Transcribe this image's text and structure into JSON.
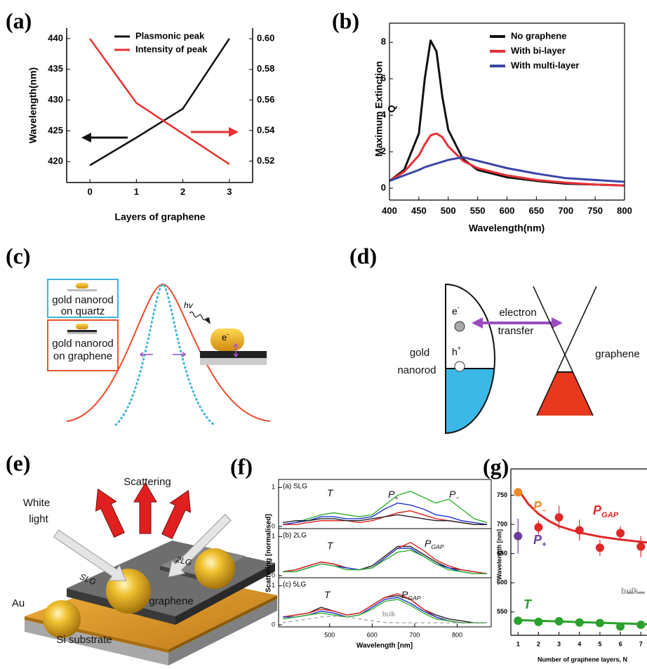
{
  "chart_data": [
    {
      "type": "line",
      "label": "(a)",
      "x": [
        0,
        1,
        2,
        3
      ],
      "xlim": [
        -0.5,
        3.5
      ],
      "xticks": [
        0,
        1,
        2,
        3
      ],
      "ylim": [
        416.6,
        441.7
      ],
      "yticks": [
        420,
        425,
        430,
        435,
        440
      ],
      "y2lim": [
        0.506,
        0.607
      ],
      "y2ticks": [
        0.52,
        0.54,
        0.56,
        0.58,
        {
          "value": 0.6,
          "label": "0.60"
        }
      ],
      "xlabel": "Layers of graphene",
      "ylabel": "Wavelength(nm)",
      "series": [
        {
          "name": "Plasmonic peak",
          "color": "#111111",
          "values": [
            419.4,
            423.9,
            428.6,
            440
          ]
        },
        {
          "name": "Intensity of peak",
          "color": "#e8312f",
          "axis": "y2",
          "values": [
            0.6,
            0.558,
            0.538,
            0.518
          ]
        }
      ]
    },
    {
      "type": "line",
      "label": "(b)",
      "x": [
        400,
        425,
        450,
        460,
        470,
        480,
        490,
        500,
        525,
        550,
        600,
        650,
        700,
        750,
        800
      ],
      "xlim": [
        400,
        800
      ],
      "xticks": [
        400,
        450,
        500,
        550,
        600,
        650,
        700,
        750,
        800
      ],
      "ylim": [
        -0.65,
        9.05
      ],
      "yticks": [
        0,
        2,
        4,
        6,
        8
      ],
      "xlabel": "Wavelength(nm)",
      "ylabel": [
        "Maximum Extinction",
        "Q"
      ],
      "series": [
        {
          "name": "No graphene",
          "color": "#111111",
          "values": [
            0.4,
            1.0,
            3.0,
            6.0,
            8.1,
            7.5,
            5.0,
            3.2,
            1.6,
            1.0,
            0.6,
            0.4,
            0.25,
            0.2,
            0.15
          ]
        },
        {
          "name": "With bi-layer",
          "color": "#e8313a",
          "values": [
            0.4,
            0.9,
            1.8,
            2.4,
            2.9,
            3.0,
            2.8,
            2.3,
            1.5,
            1.1,
            0.7,
            0.45,
            0.3,
            0.2,
            0.15
          ]
        },
        {
          "name": "With multi-layer",
          "color": "#3a45a8",
          "values": [
            0.4,
            0.7,
            1.0,
            1.15,
            1.25,
            1.35,
            1.45,
            1.55,
            1.7,
            1.5,
            1.1,
            0.8,
            0.55,
            0.45,
            0.35
          ]
        }
      ]
    },
    {
      "type": "line",
      "label": "(f)",
      "x": [
        390,
        420,
        450,
        480,
        510,
        540,
        570,
        600,
        630,
        660,
        690,
        720,
        750,
        780,
        810,
        840,
        870
      ],
      "xlim": [
        380,
        880
      ],
      "xticks": [
        500,
        600,
        700,
        800
      ],
      "ylim": [
        0,
        1.15
      ],
      "yticks": [
        0,
        1
      ],
      "xlabel": "Wavelength [nm]",
      "ylabel": "Scattering [normalised]",
      "panels": [
        {
          "title": "(a) SLG",
          "series": [
            {
              "color": "#30b030",
              "values": [
                0.05,
                0.1,
                0.2,
                0.3,
                0.35,
                0.3,
                0.25,
                0.3,
                0.55,
                0.8,
                0.9,
                0.75,
                0.6,
                0.7,
                0.45,
                0.2,
                0.1
              ]
            },
            {
              "color": "#2030d0",
              "values": [
                0.05,
                0.1,
                0.15,
                0.25,
                0.25,
                0.2,
                0.2,
                0.25,
                0.45,
                0.6,
                0.55,
                0.45,
                0.3,
                0.25,
                0.15,
                0.1,
                0.05
              ]
            },
            {
              "color": "#e02020",
              "values": [
                0.05,
                0.05,
                0.1,
                0.15,
                0.15,
                0.15,
                0.1,
                0.15,
                0.25,
                0.35,
                0.4,
                0.3,
                0.2,
                0.15,
                0.1,
                0.05,
                0.05
              ]
            },
            {
              "color": "#222222",
              "values": [
                0.1,
                0.15,
                0.15,
                0.2,
                0.2,
                0.15,
                0.15,
                0.2,
                0.25,
                0.3,
                0.25,
                0.2,
                0.15,
                0.15,
                0.1,
                0.05,
                0.05
              ]
            }
          ],
          "annotations": [
            {
              "text": "T"
            },
            {
              "text": "P",
              "sub": "+"
            },
            {
              "text": "P",
              "sub": "−"
            }
          ]
        },
        {
          "title": "(b) 2LG",
          "series": [
            {
              "color": "#222222",
              "values": [
                0.1,
                0.15,
                0.25,
                0.35,
                0.3,
                0.2,
                0.15,
                0.25,
                0.5,
                0.75,
                0.75,
                0.55,
                0.35,
                0.2,
                0.15,
                0.1,
                0.05
              ]
            },
            {
              "color": "#e02020",
              "values": [
                0.1,
                0.15,
                0.25,
                0.35,
                0.3,
                0.2,
                0.15,
                0.2,
                0.45,
                0.7,
                0.85,
                0.65,
                0.4,
                0.25,
                0.15,
                0.1,
                0.05
              ]
            },
            {
              "color": "#2030d0",
              "values": [
                0.1,
                0.1,
                0.2,
                0.3,
                0.25,
                0.2,
                0.15,
                0.2,
                0.45,
                0.7,
                0.7,
                0.5,
                0.3,
                0.2,
                0.1,
                0.05,
                0.05
              ]
            },
            {
              "color": "#30b030",
              "values": [
                0.1,
                0.1,
                0.2,
                0.3,
                0.25,
                0.15,
                0.15,
                0.2,
                0.4,
                0.6,
                0.65,
                0.5,
                0.3,
                0.15,
                0.1,
                0.05,
                0.05
              ]
            }
          ],
          "annotations": [
            {
              "text": "T"
            },
            {
              "text": "P",
              "sub": "GAP"
            }
          ]
        },
        {
          "title": "(c) 5LG",
          "series": [
            {
              "color": "#222222",
              "values": [
                0.2,
                0.25,
                0.3,
                0.45,
                0.35,
                0.25,
                0.3,
                0.5,
                0.7,
                0.75,
                0.65,
                0.4,
                0.25,
                0.15,
                0.1,
                0.05,
                0.05
              ]
            },
            {
              "color": "#e02020",
              "values": [
                0.2,
                0.25,
                0.3,
                0.4,
                0.35,
                0.25,
                0.3,
                0.5,
                0.7,
                0.8,
                0.65,
                0.4,
                0.2,
                0.1,
                0.05,
                0.05,
                0.05
              ]
            },
            {
              "color": "#2030d0",
              "values": [
                0.2,
                0.2,
                0.25,
                0.35,
                0.3,
                0.2,
                0.25,
                0.45,
                0.65,
                0.7,
                0.55,
                0.35,
                0.2,
                0.1,
                0.05,
                0.05,
                0.05
              ]
            },
            {
              "color": "#30b030",
              "values": [
                0.15,
                0.2,
                0.25,
                0.3,
                0.25,
                0.2,
                0.25,
                0.4,
                0.6,
                0.65,
                0.5,
                0.3,
                0.15,
                0.1,
                0.05,
                0.05,
                0.05
              ]
            },
            {
              "color": "#999999",
              "dash": true,
              "values": [
                0.05,
                0.1,
                0.15,
                0.2,
                0.22,
                0.2,
                0.15,
                0.1,
                0.06,
                0.05,
                0.05,
                0.05,
                0.05,
                0.05,
                0.05,
                0.05,
                0.05
              ]
            }
          ],
          "annotations": [
            {
              "text": "T"
            },
            {
              "text": "P",
              "sub": "GAP"
            },
            {
              "text": "bulk"
            }
          ]
        }
      ]
    },
    {
      "type": "scatter",
      "label": "(g)",
      "xlim": [
        0.65,
        7.3
      ],
      "xticks": [
        1,
        2,
        3,
        4,
        5,
        6,
        7
      ],
      "ylim": [
        510,
        795
      ],
      "yticks": [
        550,
        600,
        650,
        700,
        750
      ],
      "xlabel": "Number of graphene layers, N",
      "ylabel": "Wavelength [nm]",
      "series": [
        {
          "color": "#e02828",
          "mode": "lines",
          "x": [
            1,
            1.5,
            2,
            2.5,
            3,
            4,
            5,
            6,
            7,
            7.3
          ],
          "values": [
            760,
            735,
            718,
            706,
            697,
            686,
            679,
            674,
            670,
            669
          ]
        },
        {
          "color": "#2ca02c",
          "mode": "lines",
          "x": [
            1,
            7.3
          ],
          "values": [
            536,
            529
          ]
        },
        {
          "color": "#999999",
          "mode": "lines",
          "dash": true,
          "x": [
            6.3,
            7.3
          ],
          "values": [
            583,
            583
          ]
        },
        {
          "color": "#f08a24",
          "mode": "markers",
          "x": [
            1
          ],
          "values": [
            755
          ]
        },
        {
          "color": "#e02828",
          "mode": "markers",
          "x": [
            2,
            3,
            4,
            5,
            6,
            7
          ],
          "values": [
            695,
            712,
            690,
            660,
            685,
            662
          ],
          "errors": [
            12,
            20,
            18,
            14,
            12,
            18
          ]
        },
        {
          "color": "#6a3d9a",
          "mode": "markers",
          "x": [
            1
          ],
          "values": [
            680
          ],
          "errors": [
            30
          ]
        },
        {
          "color": "#2ca02c",
          "mode": "markers",
          "x": [
            1,
            2,
            3,
            4,
            5,
            6,
            7
          ],
          "values": [
            535,
            533,
            534,
            532,
            531,
            525,
            528
          ],
          "errors": [
            4,
            4,
            4,
            3,
            3,
            4,
            4
          ]
        }
      ],
      "annotations": [
        {
          "text": "P",
          "sub": "−",
          "color": "#f08a24"
        },
        {
          "text": "P",
          "sub": "GAP",
          "color": "#e02828"
        },
        {
          "text": "P",
          "sub": "+",
          "color": "#6a3d9a"
        },
        {
          "text": "T",
          "color": "#2ca02c"
        },
        {
          "text": "bulk",
          "color": "#999999"
        }
      ]
    }
  ],
  "diagrams": {
    "c": {
      "label": "(c)",
      "box_quartz": [
        "gold nanorod",
        "on quartz"
      ],
      "box_graphene": [
        "gold nanorod",
        "on graphene"
      ],
      "photon": "hv",
      "electron": {
        "text": "e",
        "sup": "-"
      }
    },
    "d": {
      "label": "(d)",
      "electron": {
        "text": "e",
        "sup": "-"
      },
      "hole": {
        "text": "h",
        "sup": "+"
      },
      "transfer": [
        "electron",
        "transfer"
      ],
      "nanorod": [
        "gold",
        "nanorod"
      ],
      "graphene": "graphene"
    },
    "e": {
      "label": "(e)",
      "scattering": "Scattering",
      "light": [
        "White",
        "light"
      ],
      "slg": "SLG",
      "blg": "2LG",
      "graphene": "graphene",
      "au": "Au",
      "substrate": "Si substrate"
    }
  }
}
